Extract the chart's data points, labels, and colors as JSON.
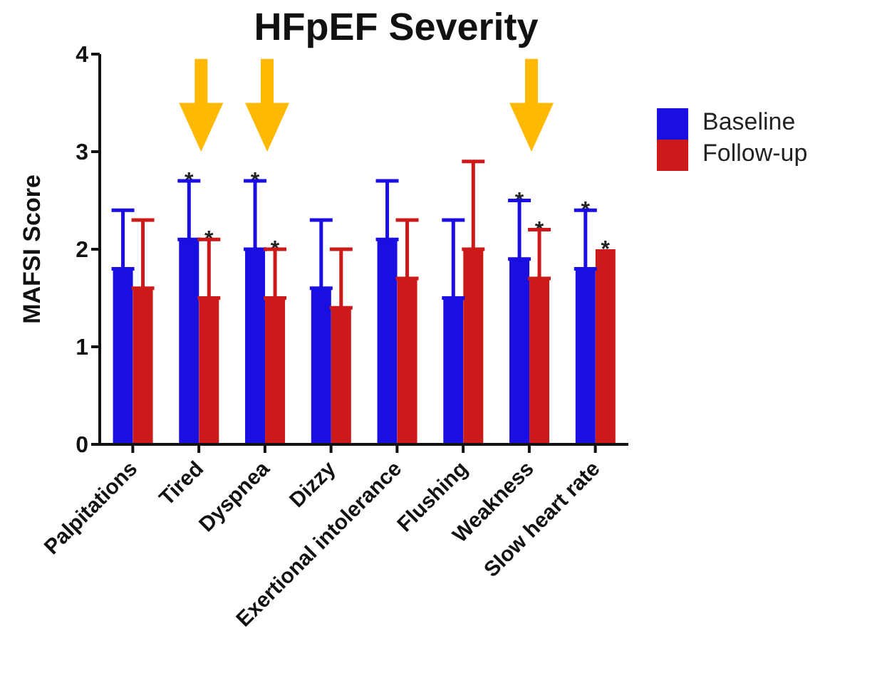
{
  "chart_data": {
    "type": "bar",
    "title": "HFpEF Severity",
    "ylabel": "MAFSI Score",
    "categories": [
      "Palpitations",
      "Tired",
      "Dyspnea",
      "Dizzy",
      "Exertional intolerance",
      "Flushing",
      "Weakness",
      "Slow heart rate"
    ],
    "series": [
      {
        "name": "Baseline",
        "color": "#1a0fe0",
        "values": [
          1.8,
          2.1,
          2.0,
          1.6,
          2.1,
          1.5,
          1.9,
          1.8
        ],
        "errors": [
          [
            1.8,
            2.4
          ],
          [
            2.1,
            2.7
          ],
          [
            2.0,
            2.7
          ],
          [
            1.6,
            2.3
          ],
          [
            2.1,
            2.7
          ],
          [
            1.5,
            2.3
          ],
          [
            1.9,
            2.5
          ],
          [
            1.8,
            2.4
          ]
        ]
      },
      {
        "name": "Follow-up",
        "color": "#cc1a1a",
        "values": [
          1.6,
          1.5,
          1.5,
          1.4,
          1.7,
          2.0,
          1.7,
          2.0
        ],
        "errors": [
          [
            1.6,
            2.3
          ],
          [
            1.5,
            2.1
          ],
          [
            1.5,
            2.0
          ],
          [
            1.4,
            2.0
          ],
          [
            1.7,
            2.3
          ],
          [
            2.0,
            2.9
          ],
          [
            1.7,
            2.2
          ],
          null
        ]
      }
    ],
    "ylim": [
      0,
      4
    ],
    "yticks": [
      0,
      1,
      2,
      3,
      4
    ],
    "grid": false,
    "legend": "right",
    "annotations": [
      {
        "text": "*",
        "x": "Tired",
        "y": 2.7
      },
      {
        "text": "*",
        "x": "Tired",
        "y": 2.1
      },
      {
        "text": "*",
        "x": "Dyspnea",
        "y": 2.7
      },
      {
        "text": "*",
        "x": "Dyspnea",
        "y": 2.0
      },
      {
        "text": "*",
        "x": "Weakness",
        "y": 2.5
      },
      {
        "text": "*",
        "x": "Weakness",
        "y": 2.2
      },
      {
        "text": "*",
        "x": "Slow heart rate",
        "y": 2.4
      },
      {
        "text": "*",
        "x": "Slow heart rate",
        "y": 2.0
      }
    ]
  }
}
